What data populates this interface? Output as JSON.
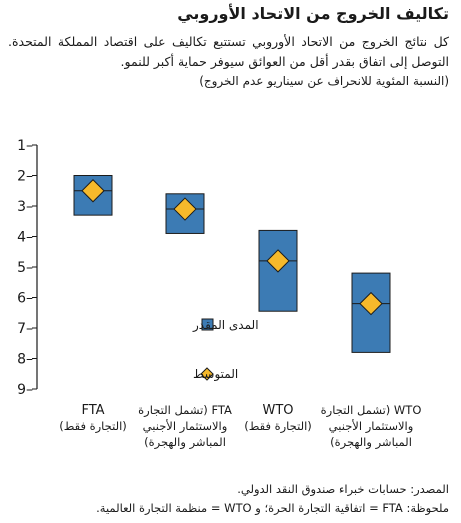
{
  "title": "تكاليف الخروج من الاتحاد الأوروبي",
  "subtitle": "كل نتائج الخروج من الاتحاد الأوروبي تستتبع تكاليف على اقتصاد المملكة المتحدة. التوصل إلى اتفاق بقدر أقل من العوائق سيوفر حماية أكبر للنمو.",
  "unit_note": "(النسبة المئوية للانحراف عن سيناريو عدم الخروج)",
  "source": "المصدر: حسابات خبراء صندوق النقد الدولي.",
  "note": "ملحوظة: FTA = اتفاقية التجارة الحرة؛ و WTO = منظمة التجارة العالمية.",
  "colors": {
    "range_fill": "#3c7bb4",
    "range_stroke": "#1b1b1b",
    "average_fill": "#f6b92b",
    "axis": "#1a1a1a"
  },
  "chart_data": {
    "type": "range-bar",
    "y_axis": {
      "min": 1,
      "max": 9,
      "inverted": true,
      "tick_labels": [
        "1–",
        "2–",
        "3–",
        "4–",
        "5–",
        "6–",
        "7–",
        "8–",
        "9–"
      ]
    },
    "grid": false,
    "categories": [
      {
        "lines": [
          "FTA",
          "(التجارة فقط)"
        ]
      },
      {
        "lines": [
          "FTA (تشمل التجارة",
          "والاستثمار الأجنبي",
          "المباشر والهجرة)"
        ]
      },
      {
        "lines": [
          "WTO",
          "(التجارة فقط)"
        ]
      },
      {
        "lines": [
          "WTO (تشمل التجارة",
          "والاستثمار الأجنبي",
          "المباشر والهجرة)"
        ]
      }
    ],
    "series": [
      {
        "name": "المدى المقدر",
        "kind": "range",
        "values": [
          [
            2.0,
            3.3
          ],
          [
            2.6,
            3.9
          ],
          [
            3.8,
            6.45
          ],
          [
            5.2,
            7.8
          ]
        ]
      },
      {
        "name": "المتوسط",
        "kind": "marker",
        "values": [
          2.5,
          3.1,
          4.8,
          6.2
        ]
      }
    ],
    "legend": {
      "placement": "center-left"
    }
  }
}
